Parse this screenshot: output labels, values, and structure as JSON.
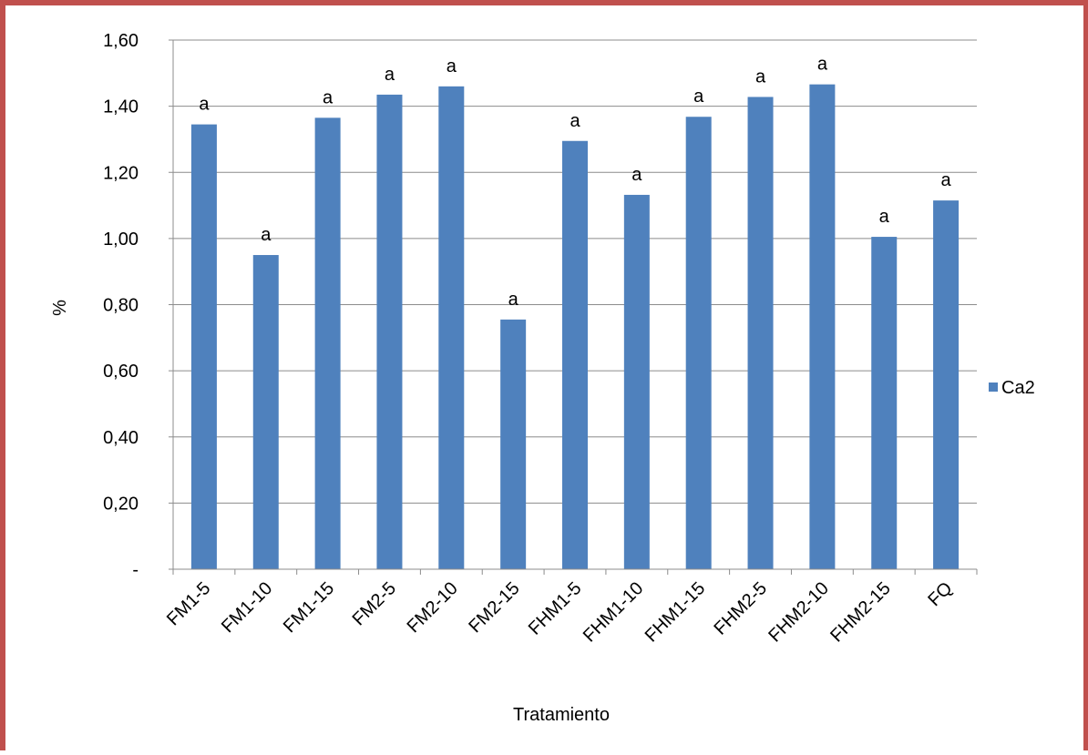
{
  "colors": {
    "frame": "#c0504d",
    "bar": "#4f81bd",
    "grid": "#8c8c8c",
    "axis": "#8c8c8c"
  },
  "chart_data": {
    "type": "bar",
    "xlabel": "Tratamiento",
    "ylabel": "%",
    "ylim": [
      0,
      1.6
    ],
    "yticks": [
      {
        "value": 0,
        "label": "-"
      },
      {
        "value": 0.2,
        "label": "0,20"
      },
      {
        "value": 0.4,
        "label": "0,40"
      },
      {
        "value": 0.6,
        "label": "0,60"
      },
      {
        "value": 0.8,
        "label": "0,80"
      },
      {
        "value": 1.0,
        "label": "1,00"
      },
      {
        "value": 1.2,
        "label": "1,20"
      },
      {
        "value": 1.4,
        "label": "1,40"
      },
      {
        "value": 1.6,
        "label": "1,60"
      }
    ],
    "grid": true,
    "legend_position": "right",
    "categories": [
      "FM1-5",
      "FM1-10",
      "FM1-15",
      "FM2-5",
      "FM2-10",
      "FM2-15",
      "FHM1-5",
      "FHM1-10",
      "FHM1-15",
      "FHM2-5",
      "FHM2-10",
      "FHM2-15",
      "FQ"
    ],
    "series": [
      {
        "name": "Ca2",
        "values": [
          1.345,
          0.95,
          1.365,
          1.435,
          1.46,
          0.755,
          1.295,
          1.132,
          1.368,
          1.428,
          1.466,
          1.005,
          1.115
        ],
        "annotations": [
          "a",
          "a",
          "a",
          "a",
          "a",
          "a",
          "a",
          "a",
          "a",
          "a",
          "a",
          "a",
          "a"
        ]
      }
    ]
  }
}
